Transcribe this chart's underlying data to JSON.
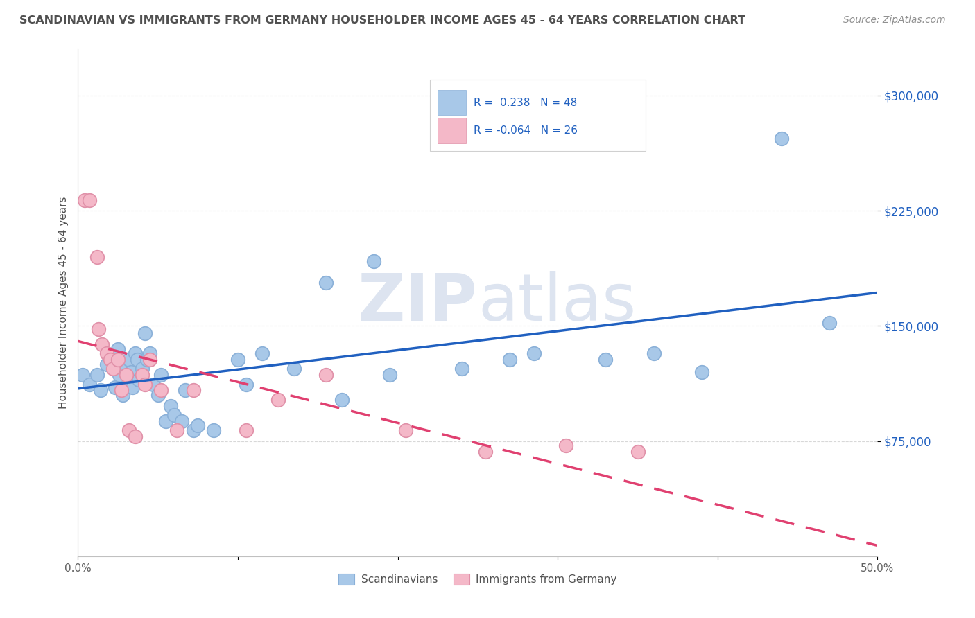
{
  "title": "SCANDINAVIAN VS IMMIGRANTS FROM GERMANY HOUSEHOLDER INCOME AGES 45 - 64 YEARS CORRELATION CHART",
  "source": "Source: ZipAtlas.com",
  "ylabel": "Householder Income Ages 45 - 64 years",
  "xlim": [
    0.0,
    0.5
  ],
  "ylim": [
    0,
    330000
  ],
  "yticks": [
    75000,
    150000,
    225000,
    300000
  ],
  "ytick_labels": [
    "$75,000",
    "$150,000",
    "$225,000",
    "$300,000"
  ],
  "xticks": [
    0.0,
    0.1,
    0.2,
    0.3,
    0.4,
    0.5
  ],
  "xtick_labels": [
    "0.0%",
    "",
    "",
    "",
    "",
    "50.0%"
  ],
  "blue_color": "#a8c8e8",
  "pink_color": "#f4b8c8",
  "blue_line_color": "#2060c0",
  "pink_line_color": "#e04070",
  "blue_text_color": "#2060c0",
  "title_color": "#505050",
  "source_color": "#909090",
  "grid_color": "#d8d8d8",
  "watermark_color": "#dde4f0",
  "scandinavians": [
    [
      0.003,
      118000
    ],
    [
      0.007,
      112000
    ],
    [
      0.012,
      118000
    ],
    [
      0.014,
      108000
    ],
    [
      0.018,
      125000
    ],
    [
      0.022,
      128000
    ],
    [
      0.023,
      110000
    ],
    [
      0.025,
      135000
    ],
    [
      0.026,
      118000
    ],
    [
      0.028,
      125000
    ],
    [
      0.028,
      105000
    ],
    [
      0.032,
      128000
    ],
    [
      0.033,
      120000
    ],
    [
      0.034,
      110000
    ],
    [
      0.036,
      132000
    ],
    [
      0.037,
      128000
    ],
    [
      0.038,
      115000
    ],
    [
      0.04,
      122000
    ],
    [
      0.042,
      145000
    ],
    [
      0.043,
      128000
    ],
    [
      0.045,
      132000
    ],
    [
      0.047,
      112000
    ],
    [
      0.05,
      105000
    ],
    [
      0.052,
      118000
    ],
    [
      0.055,
      88000
    ],
    [
      0.058,
      98000
    ],
    [
      0.06,
      92000
    ],
    [
      0.065,
      88000
    ],
    [
      0.067,
      108000
    ],
    [
      0.072,
      82000
    ],
    [
      0.075,
      85000
    ],
    [
      0.085,
      82000
    ],
    [
      0.1,
      128000
    ],
    [
      0.105,
      112000
    ],
    [
      0.115,
      132000
    ],
    [
      0.135,
      122000
    ],
    [
      0.155,
      178000
    ],
    [
      0.165,
      102000
    ],
    [
      0.185,
      192000
    ],
    [
      0.195,
      118000
    ],
    [
      0.24,
      122000
    ],
    [
      0.27,
      128000
    ],
    [
      0.285,
      132000
    ],
    [
      0.33,
      128000
    ],
    [
      0.36,
      132000
    ],
    [
      0.39,
      120000
    ],
    [
      0.44,
      272000
    ],
    [
      0.47,
      152000
    ]
  ],
  "germany": [
    [
      0.004,
      232000
    ],
    [
      0.007,
      232000
    ],
    [
      0.012,
      195000
    ],
    [
      0.013,
      148000
    ],
    [
      0.015,
      138000
    ],
    [
      0.018,
      132000
    ],
    [
      0.02,
      128000
    ],
    [
      0.022,
      122000
    ],
    [
      0.025,
      128000
    ],
    [
      0.027,
      108000
    ],
    [
      0.03,
      118000
    ],
    [
      0.032,
      82000
    ],
    [
      0.036,
      78000
    ],
    [
      0.04,
      118000
    ],
    [
      0.042,
      112000
    ],
    [
      0.045,
      128000
    ],
    [
      0.052,
      108000
    ],
    [
      0.062,
      82000
    ],
    [
      0.072,
      108000
    ],
    [
      0.105,
      82000
    ],
    [
      0.125,
      102000
    ],
    [
      0.155,
      118000
    ],
    [
      0.205,
      82000
    ],
    [
      0.255,
      68000
    ],
    [
      0.305,
      72000
    ],
    [
      0.35,
      68000
    ]
  ]
}
